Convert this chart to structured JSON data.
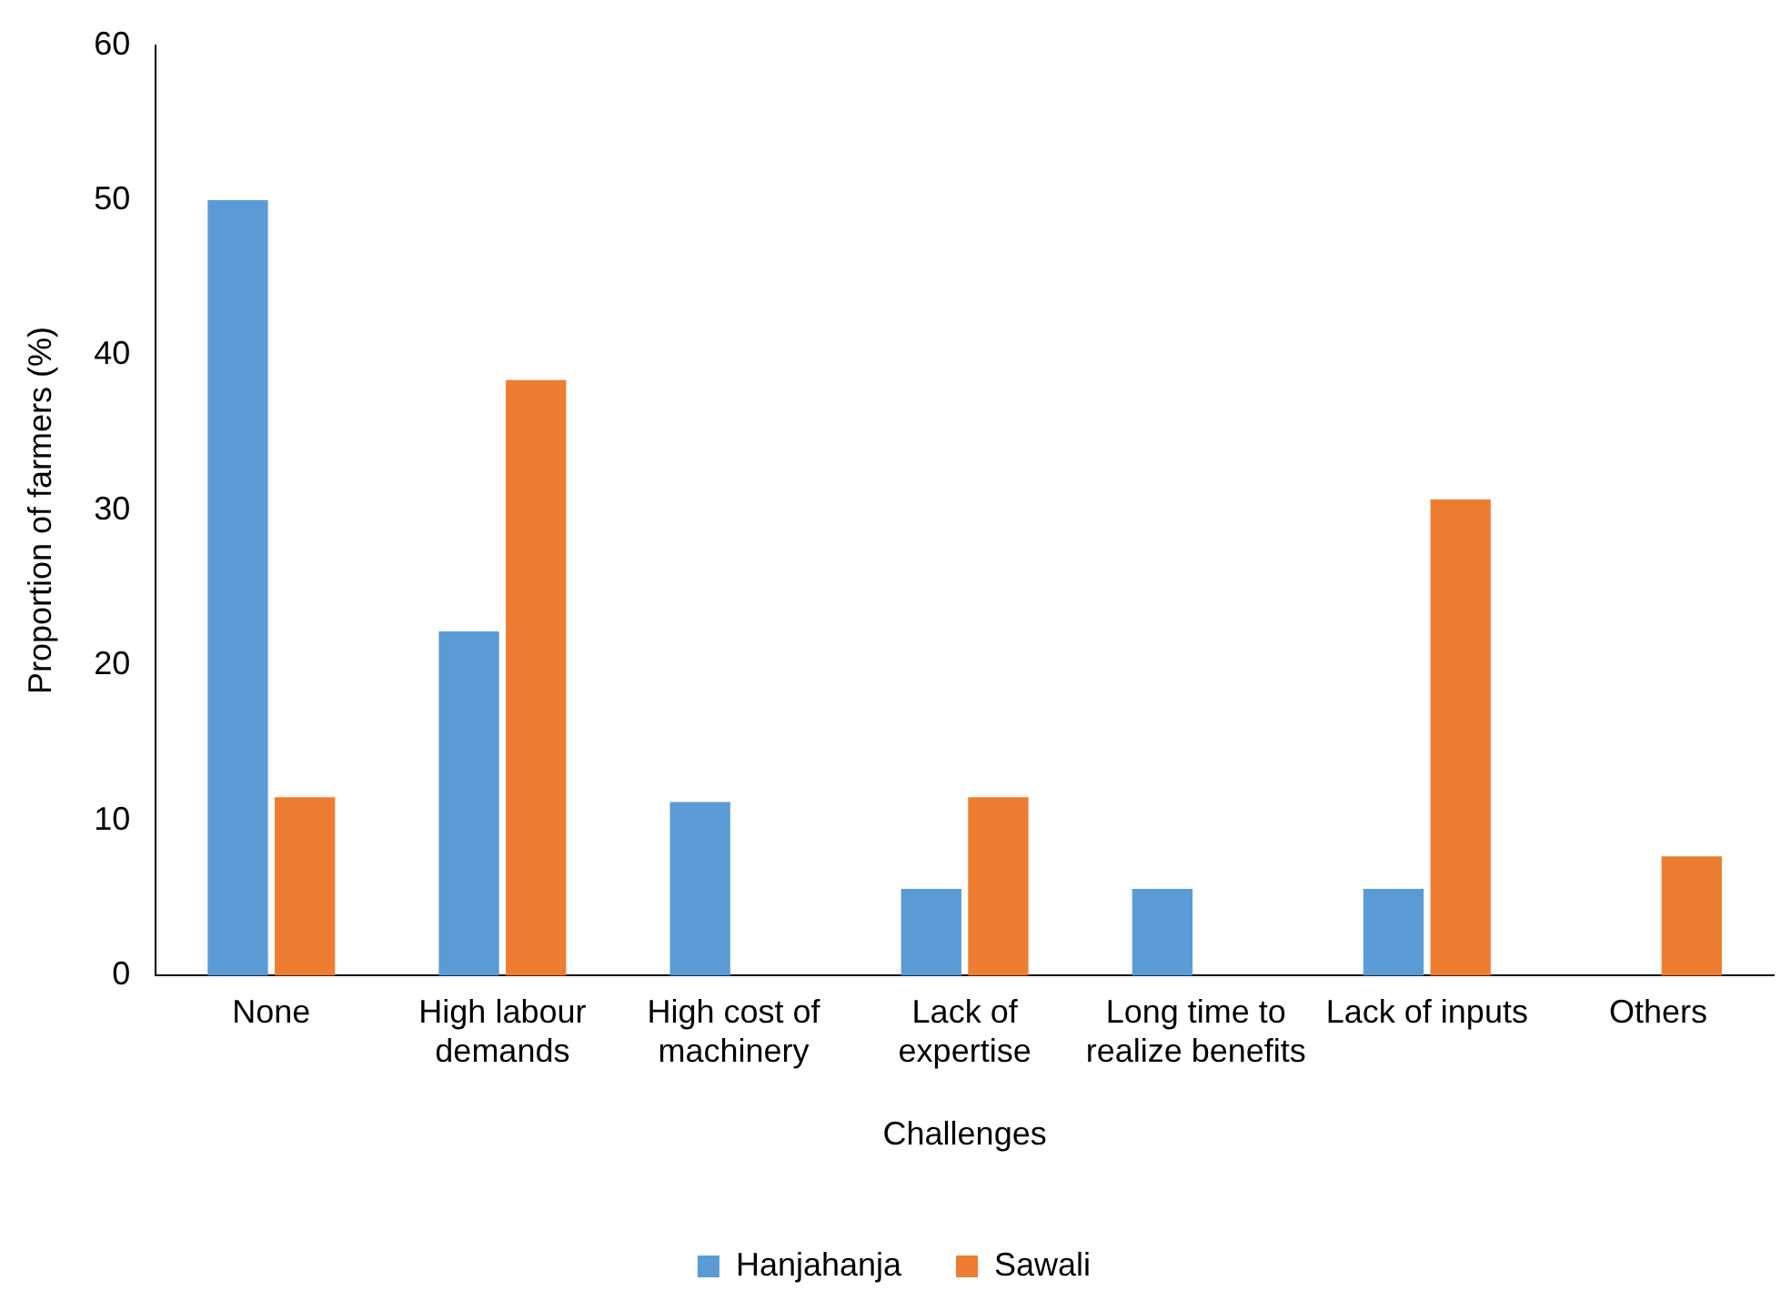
{
  "chart_data": {
    "type": "bar",
    "xlabel": "Challenges",
    "ylabel": "Proportion of farmers (%)",
    "categories": [
      "None",
      "High labour demands",
      "High cost of machinery",
      "Lack of expertise",
      "Long time to realize benefits",
      "Lack of inputs",
      "Others"
    ],
    "series": [
      {
        "name": "Hanjahanja",
        "color": "#5b9bd5",
        "values": [
          50,
          22.2,
          11.2,
          5.6,
          5.6,
          5.6,
          null
        ]
      },
      {
        "name": "Sawali",
        "color": "#ed7d31",
        "values": [
          11.5,
          38.4,
          null,
          11.5,
          null,
          30.7,
          7.7
        ]
      }
    ],
    "ylim": [
      0,
      60
    ],
    "yticks": [
      0,
      10,
      20,
      30,
      40,
      50,
      60
    ],
    "grid": false,
    "legend": "bottom"
  }
}
